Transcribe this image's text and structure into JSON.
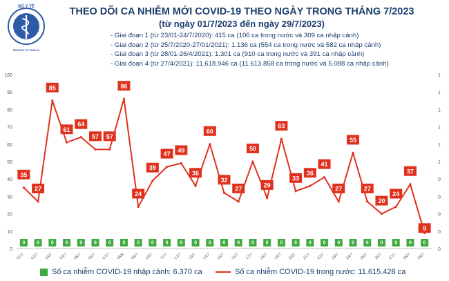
{
  "header": {
    "org_name": "BỘ Y TẾ",
    "org_name_en": "MINISTRY OF HEALTH",
    "title": "THEO DÕI CA NHIỄM MỚI COVID-19 THEO NGÀY TRONG THÁNG 7/2023",
    "subtitle": "(từ ngày 01/7/2023 đến ngày 29/7/2023)",
    "stages": [
      "- Giai đoạn 1 (từ 23/01-24/7/2020): 415 ca (106 ca trong nước và 309 ca nhập cảnh)",
      "- Giai đoạn 2 (từ 25/7/2020-27/01/2021): 1.136 ca (554 ca trong nước và 582 ca nhập cảnh)",
      "- Giai đoạn 3 (từ 28/01-26/4/2021): 1.301 ca (910 ca trong nước và 391 ca nhập cảnh)",
      "- Giai đoạn 4 (từ 27/4/2021): 11.618.946 ca (11.613.858 ca trong nước và 5.088 ca nhập cảnh)"
    ]
  },
  "colors": {
    "line": "#e0301e",
    "bar": "#3faa3f",
    "label_bg": "#e0301e",
    "text": "#1b3f6e"
  },
  "chart_data": {
    "type": "line",
    "categories": [
      "01/7",
      "02/7",
      "03/7",
      "04/7",
      "05/7",
      "06/7",
      "07/7",
      "08/8",
      "09/7",
      "10/7",
      "11/7",
      "12/7",
      "13/7",
      "14/7",
      "15/7",
      "16/7",
      "17/7",
      "18/7",
      "19/7",
      "20/7",
      "21/7",
      "22/7",
      "23/7",
      "24/7",
      "25/7",
      "26/7",
      "27/7",
      "28/7",
      "29/7"
    ],
    "series": [
      {
        "name": "Số ca nhiễm COVID-19 trong nước: 11.615.428 ca",
        "kind": "line",
        "axis": "left",
        "values": [
          35,
          27,
          85,
          61,
          64,
          57,
          57,
          86,
          24,
          39,
          47,
          49,
          36,
          60,
          32,
          27,
          50,
          29,
          63,
          33,
          36,
          41,
          27,
          55,
          27,
          20,
          24,
          37,
          9
        ]
      },
      {
        "name": "Số ca nhiễm COVID-19 nhập cảnh: 6.370 ca",
        "kind": "bar",
        "axis": "right",
        "values": [
          0,
          0,
          0,
          0,
          0,
          0,
          0,
          0,
          0,
          0,
          0,
          0,
          0,
          0,
          0,
          0,
          0,
          0,
          0,
          0,
          0,
          0,
          0,
          0,
          0,
          0,
          0,
          0,
          0
        ]
      }
    ],
    "y_left": {
      "min": 0,
      "max": 100,
      "ticks": [
        "0",
        "10",
        "20",
        "30",
        "40",
        "50",
        "60",
        "70",
        "80",
        "90",
        "100"
      ]
    },
    "y_right": {
      "ticks": [
        "0",
        "0",
        "0",
        "0",
        "0",
        "1",
        "1",
        "1",
        "1",
        "1",
        "1"
      ]
    },
    "grid": false,
    "legend_position": "bottom"
  }
}
